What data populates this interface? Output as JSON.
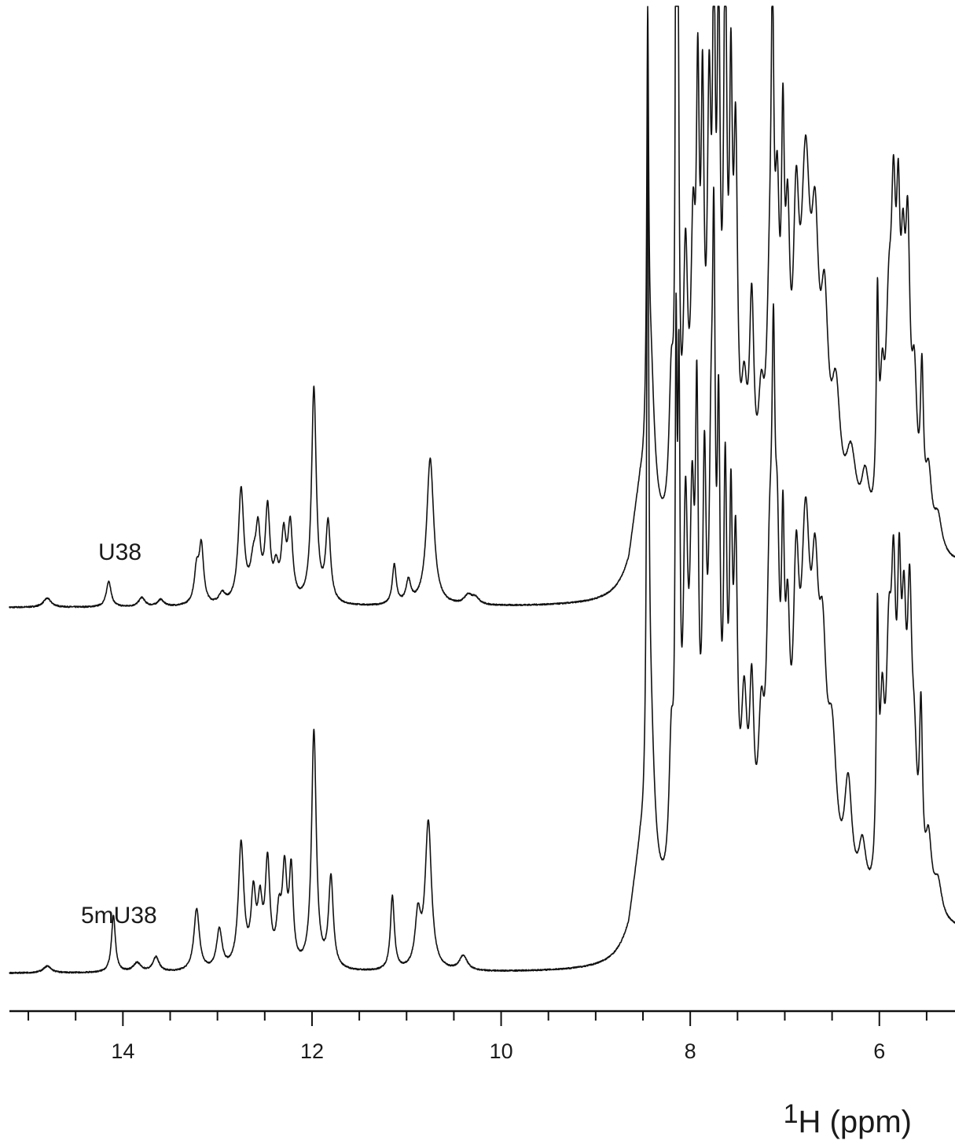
{
  "chart_data": {
    "type": "line",
    "title": "",
    "xlabel": {
      "superscript": "1",
      "text": "H (ppm)"
    },
    "ylabel": "",
    "x_reversed": true,
    "xlim": [
      15.2,
      5.2
    ],
    "major_ticks": [
      14,
      12,
      10,
      8,
      6
    ],
    "minor_tick_step": 0.5,
    "tick_labels": [
      "14",
      "12",
      "10",
      "8",
      "6"
    ],
    "grid": false,
    "line_color": "#111111",
    "series": [
      {
        "name": "U38",
        "peaks": [
          [
            14.8,
            0.8,
            0.05
          ],
          [
            14.15,
            2.3,
            0.03
          ],
          [
            13.8,
            0.8,
            0.04
          ],
          [
            13.6,
            0.6,
            0.04
          ],
          [
            13.22,
            3.0,
            0.03
          ],
          [
            13.17,
            5.0,
            0.028
          ],
          [
            12.95,
            0.9,
            0.04
          ],
          [
            12.75,
            10.0,
            0.035
          ],
          [
            12.62,
            3.0,
            0.04
          ],
          [
            12.57,
            5.5,
            0.03
          ],
          [
            12.47,
            8.0,
            0.03
          ],
          [
            12.38,
            2.5,
            0.03
          ],
          [
            12.3,
            5.5,
            0.03
          ],
          [
            12.23,
            6.5,
            0.03
          ],
          [
            11.98,
            19.0,
            0.03
          ],
          [
            11.83,
            7.0,
            0.03
          ],
          [
            11.13,
            3.5,
            0.025
          ],
          [
            10.98,
            2.0,
            0.03
          ],
          [
            10.75,
            13.0,
            0.045
          ],
          [
            10.35,
            0.8,
            0.05
          ],
          [
            10.27,
            0.6,
            0.05
          ],
          [
            8.55,
            5.0,
            0.14
          ],
          [
            8.45,
            35.0,
            0.012
          ],
          [
            8.42,
            14.0,
            0.05
          ],
          [
            8.2,
            12.0,
            0.03
          ],
          [
            8.15,
            50.0,
            0.01
          ],
          [
            8.13,
            40.0,
            0.015
          ],
          [
            8.05,
            22.0,
            0.03
          ],
          [
            7.97,
            22.0,
            0.03
          ],
          [
            7.92,
            32.0,
            0.02
          ],
          [
            7.87,
            32.0,
            0.02
          ],
          [
            7.8,
            33.0,
            0.025
          ],
          [
            7.75,
            40.0,
            0.018
          ],
          [
            7.7,
            40.0,
            0.02
          ],
          [
            7.63,
            45.0,
            0.022
          ],
          [
            7.57,
            32.0,
            0.02
          ],
          [
            7.52,
            30.0,
            0.025
          ],
          [
            7.43,
            10.0,
            0.04
          ],
          [
            7.35,
            18.0,
            0.03
          ],
          [
            7.25,
            9.0,
            0.04
          ],
          [
            7.16,
            16.0,
            0.04
          ],
          [
            7.13,
            32.0,
            0.018
          ],
          [
            7.08,
            22.0,
            0.03
          ],
          [
            7.02,
            26.0,
            0.02
          ],
          [
            6.97,
            20.0,
            0.03
          ],
          [
            6.88,
            22.0,
            0.04
          ],
          [
            6.78,
            28.0,
            0.06
          ],
          [
            6.68,
            20.0,
            0.05
          ],
          [
            6.58,
            16.0,
            0.05
          ],
          [
            6.46,
            11.0,
            0.06
          ],
          [
            6.3,
            7.0,
            0.07
          ],
          [
            6.15,
            5.0,
            0.05
          ],
          [
            6.02,
            18.0,
            0.015
          ],
          [
            5.97,
            10.0,
            0.03
          ],
          [
            5.9,
            16.0,
            0.04
          ],
          [
            5.85,
            22.0,
            0.03
          ],
          [
            5.8,
            20.0,
            0.025
          ],
          [
            5.75,
            17.0,
            0.03
          ],
          [
            5.7,
            22.0,
            0.03
          ],
          [
            5.63,
            12.0,
            0.035
          ],
          [
            5.55,
            13.0,
            0.02
          ],
          [
            5.48,
            6.0,
            0.04
          ],
          [
            5.38,
            3.0,
            0.05
          ]
        ]
      },
      {
        "name": "5mU38",
        "peaks": [
          [
            14.8,
            0.6,
            0.05
          ],
          [
            14.1,
            5.0,
            0.025
          ],
          [
            13.85,
            0.8,
            0.05
          ],
          [
            13.65,
            1.3,
            0.04
          ],
          [
            13.22,
            5.5,
            0.035
          ],
          [
            12.98,
            3.5,
            0.035
          ],
          [
            12.75,
            11.0,
            0.035
          ],
          [
            12.62,
            6.0,
            0.03
          ],
          [
            12.55,
            5.0,
            0.03
          ],
          [
            12.47,
            9.0,
            0.03
          ],
          [
            12.35,
            4.0,
            0.03
          ],
          [
            12.29,
            8.0,
            0.03
          ],
          [
            12.22,
            8.0,
            0.025
          ],
          [
            11.98,
            21.0,
            0.03
          ],
          [
            11.8,
            8.0,
            0.03
          ],
          [
            11.15,
            6.5,
            0.025
          ],
          [
            10.88,
            4.5,
            0.035
          ],
          [
            10.77,
            13.0,
            0.04
          ],
          [
            10.4,
            1.3,
            0.05
          ],
          [
            8.55,
            5.0,
            0.14
          ],
          [
            8.45,
            62.0,
            0.012
          ],
          [
            8.42,
            14.0,
            0.05
          ],
          [
            8.2,
            12.0,
            0.03
          ],
          [
            8.15,
            40.0,
            0.012
          ],
          [
            8.12,
            38.0,
            0.015
          ],
          [
            8.05,
            30.0,
            0.03
          ],
          [
            7.98,
            28.0,
            0.03
          ],
          [
            7.93,
            35.0,
            0.02
          ],
          [
            7.85,
            32.0,
            0.025
          ],
          [
            7.78,
            30.0,
            0.03
          ],
          [
            7.75,
            40.0,
            0.018
          ],
          [
            7.7,
            34.0,
            0.02
          ],
          [
            7.63,
            32.0,
            0.022
          ],
          [
            7.57,
            27.0,
            0.02
          ],
          [
            7.52,
            26.0,
            0.025
          ],
          [
            7.43,
            15.0,
            0.04
          ],
          [
            7.35,
            15.0,
            0.03
          ],
          [
            7.25,
            12.0,
            0.04
          ],
          [
            7.16,
            24.0,
            0.04
          ],
          [
            7.12,
            30.0,
            0.02
          ],
          [
            7.08,
            22.0,
            0.03
          ],
          [
            7.02,
            22.0,
            0.02
          ],
          [
            6.97,
            17.0,
            0.03
          ],
          [
            6.88,
            22.0,
            0.04
          ],
          [
            6.78,
            28.0,
            0.06
          ],
          [
            6.68,
            20.0,
            0.05
          ],
          [
            6.6,
            16.0,
            0.05
          ],
          [
            6.5,
            12.0,
            0.06
          ],
          [
            6.33,
            10.0,
            0.05
          ],
          [
            6.18,
            5.0,
            0.05
          ],
          [
            6.02,
            22.0,
            0.015
          ],
          [
            5.97,
            14.0,
            0.03
          ],
          [
            5.9,
            18.0,
            0.035
          ],
          [
            5.85,
            22.0,
            0.03
          ],
          [
            5.79,
            21.0,
            0.025
          ],
          [
            5.74,
            19.0,
            0.03
          ],
          [
            5.68,
            22.0,
            0.03
          ],
          [
            5.63,
            10.0,
            0.035
          ],
          [
            5.56,
            15.0,
            0.02
          ],
          [
            5.48,
            6.0,
            0.04
          ],
          [
            5.38,
            3.0,
            0.05
          ]
        ]
      }
    ]
  }
}
